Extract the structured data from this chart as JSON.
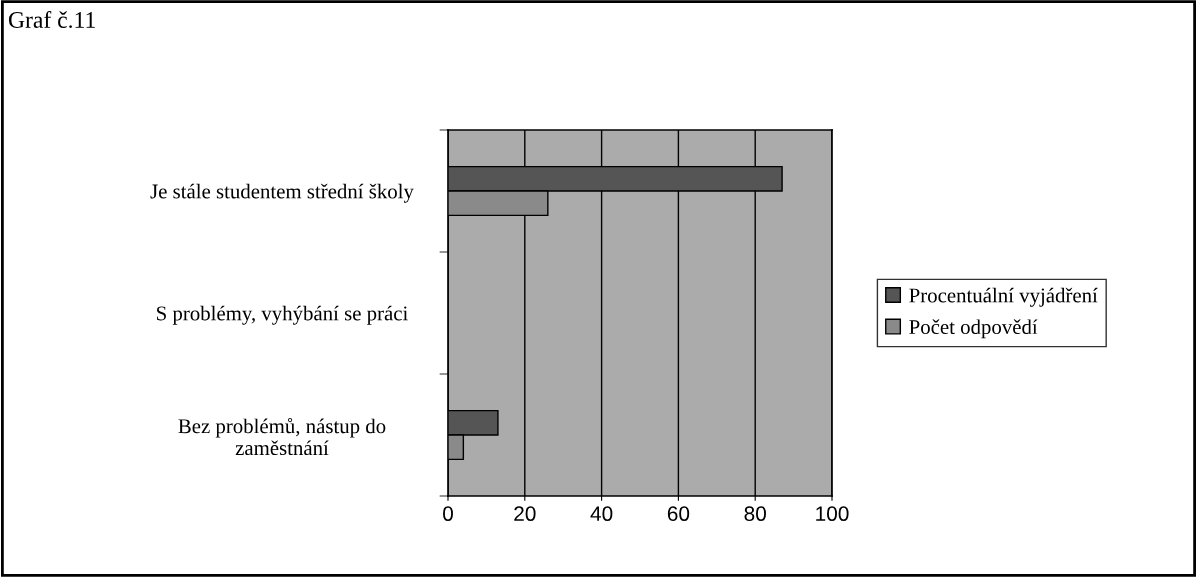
{
  "chart_data": {
    "type": "bar",
    "orientation": "horizontal",
    "title": "Graf č.11",
    "categories": [
      "Je stále studentem střední školy",
      "S problémy, vyhýbání se práci",
      "Bez problémů, nástup do\nzaměstnání"
    ],
    "series": [
      {
        "name": "Procentuální vyjádření",
        "color": "#555555",
        "values": [
          87,
          null,
          13
        ]
      },
      {
        "name": "Počet odpovědí",
        "color": "#8a8a8a",
        "values": [
          26,
          null,
          4
        ]
      }
    ],
    "xlim": [
      0,
      100
    ],
    "xticks": [
      0,
      20,
      40,
      60,
      80,
      100
    ],
    "grid": "x",
    "legend": "right"
  }
}
